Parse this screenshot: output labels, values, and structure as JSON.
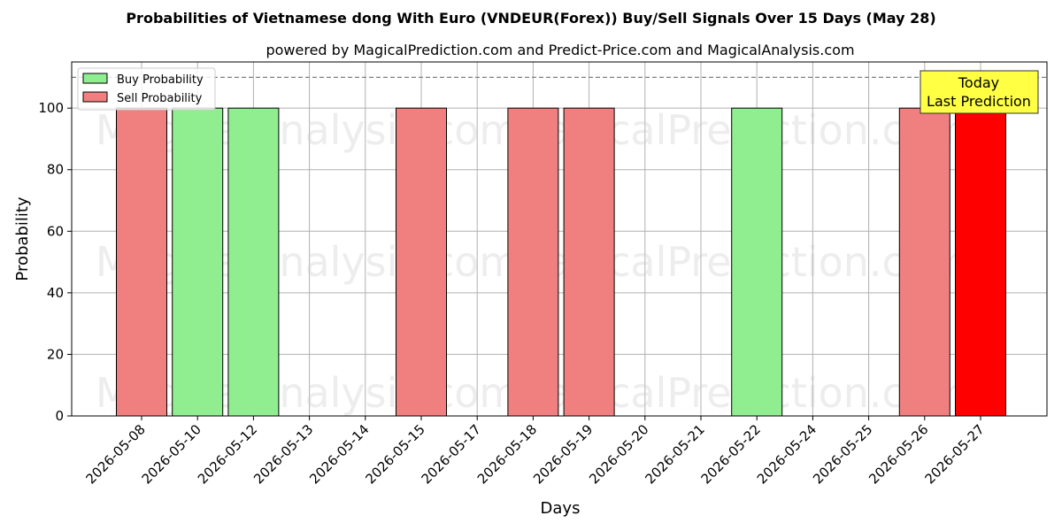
{
  "chart_data": {
    "type": "bar",
    "title": "Probabilities of Vietnamese dong With Euro (VNDEUR(Forex)) Buy/Sell Signals Over 15 Days (May 28)",
    "subtitle": "powered by MagicalPrediction.com and Predict-Price.com and MagicalAnalysis.com",
    "xlabel": "Days",
    "ylabel": "Probability",
    "ylim": [
      0,
      115
    ],
    "yticks": [
      0,
      20,
      40,
      60,
      80,
      100
    ],
    "grid": true,
    "categories": [
      "2026-05-08",
      "2026-05-10",
      "2026-05-12",
      "2026-05-13",
      "2026-05-14",
      "2026-05-15",
      "2026-05-17",
      "2026-05-18",
      "2026-05-19",
      "2026-05-20",
      "2026-05-21",
      "2026-05-22",
      "2026-05-24",
      "2026-05-25",
      "2026-05-26",
      "2026-05-27"
    ],
    "series": [
      {
        "name": "Buy Probability",
        "color": "#90ee90",
        "values": [
          0,
          100,
          100,
          0,
          0,
          0,
          0,
          0,
          0,
          0,
          0,
          100,
          0,
          0,
          0,
          0
        ]
      },
      {
        "name": "Sell Probability",
        "color": "#f08080",
        "values": [
          100,
          0,
          0,
          0,
          0,
          100,
          0,
          100,
          100,
          0,
          0,
          0,
          0,
          0,
          100,
          100
        ]
      }
    ],
    "highlight": {
      "category": "2026-05-27",
      "color": "#ff0000"
    },
    "threshold_line": {
      "value": 110,
      "style": "dashed",
      "color": "#808080"
    },
    "legend_position": "top-left",
    "annotation": {
      "lines": [
        "Today",
        "Last Prediction"
      ],
      "background": "#ffff44"
    },
    "watermarks": [
      "MagicalAnalysis.com",
      "MagicalPrediction.com"
    ]
  }
}
